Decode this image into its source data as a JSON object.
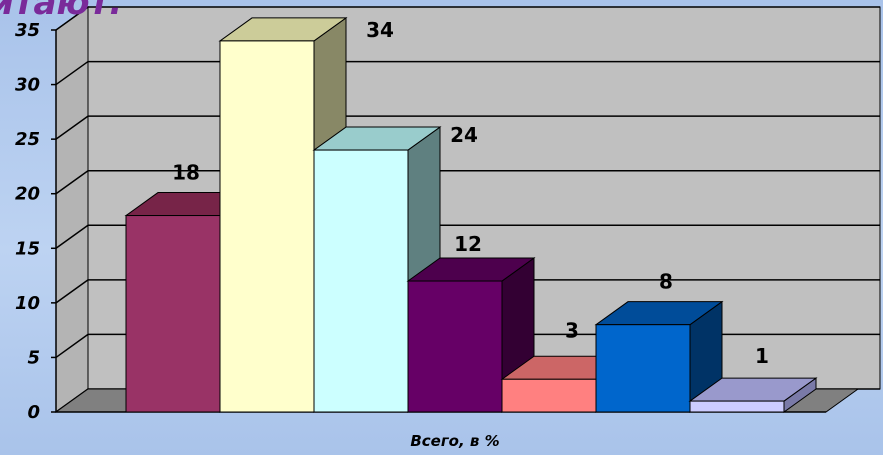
{
  "page": {
    "title_fragment": "итают."
  },
  "chart_data": {
    "type": "bar",
    "title": "",
    "xlabel": "Всего, в %",
    "ylabel": "",
    "ylim": [
      0,
      35
    ],
    "yticks": [
      0,
      5,
      10,
      15,
      20,
      25,
      30,
      35
    ],
    "grid": true,
    "legend": "none",
    "values": [
      18,
      34,
      24,
      12,
      3,
      8,
      1
    ],
    "colors": [
      {
        "front": "#993366",
        "top": "#772448",
        "side": "#5e1a38"
      },
      {
        "front": "#ffffcc",
        "top": "#cccc99",
        "side": "#888866"
      },
      {
        "front": "#ccffff",
        "top": "#99cccc",
        "side": "#5f8080"
      },
      {
        "front": "#660066",
        "top": "#4d004d",
        "side": "#330033"
      },
      {
        "front": "#ff8080",
        "top": "#cc6666",
        "side": "#a04f4f"
      },
      {
        "front": "#0066cc",
        "top": "#004c99",
        "side": "#003366"
      },
      {
        "front": "#ccccff",
        "top": "#9999cc",
        "side": "#7a7aa8"
      }
    ],
    "wall_color": "#c0c0c0",
    "floor_color": "#808080"
  }
}
